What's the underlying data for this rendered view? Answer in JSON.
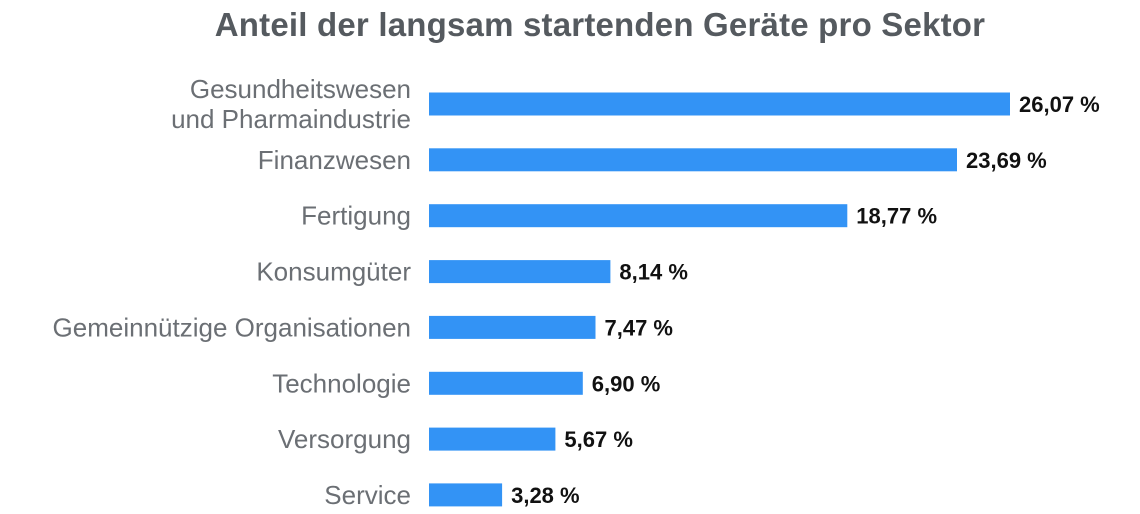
{
  "chart_data": {
    "type": "bar",
    "orientation": "horizontal",
    "title": "Anteil der langsam startenden Geräte pro Sektor",
    "categories": [
      [
        "Gesundheitswesen",
        "und Pharmaindustrie"
      ],
      [
        "Finanzwesen"
      ],
      [
        "Fertigung"
      ],
      [
        "Konsumgüter"
      ],
      [
        "Gemeinnützige Organisationen"
      ],
      [
        "Technologie"
      ],
      [
        "Versorgung"
      ],
      [
        "Service"
      ]
    ],
    "values": [
      26.07,
      23.69,
      18.77,
      8.14,
      7.47,
      6.9,
      5.67,
      3.28
    ],
    "value_labels": [
      "26,07 %",
      "23,69 %",
      "18,77 %",
      "8,14 %",
      "7,47 %",
      "6,90 %",
      "5,67 %",
      "3,28 %"
    ],
    "xlim": [
      0,
      26.07
    ],
    "grid": false,
    "legend": "none",
    "bar_color": "#3393f5",
    "xlabel": "",
    "ylabel": ""
  }
}
